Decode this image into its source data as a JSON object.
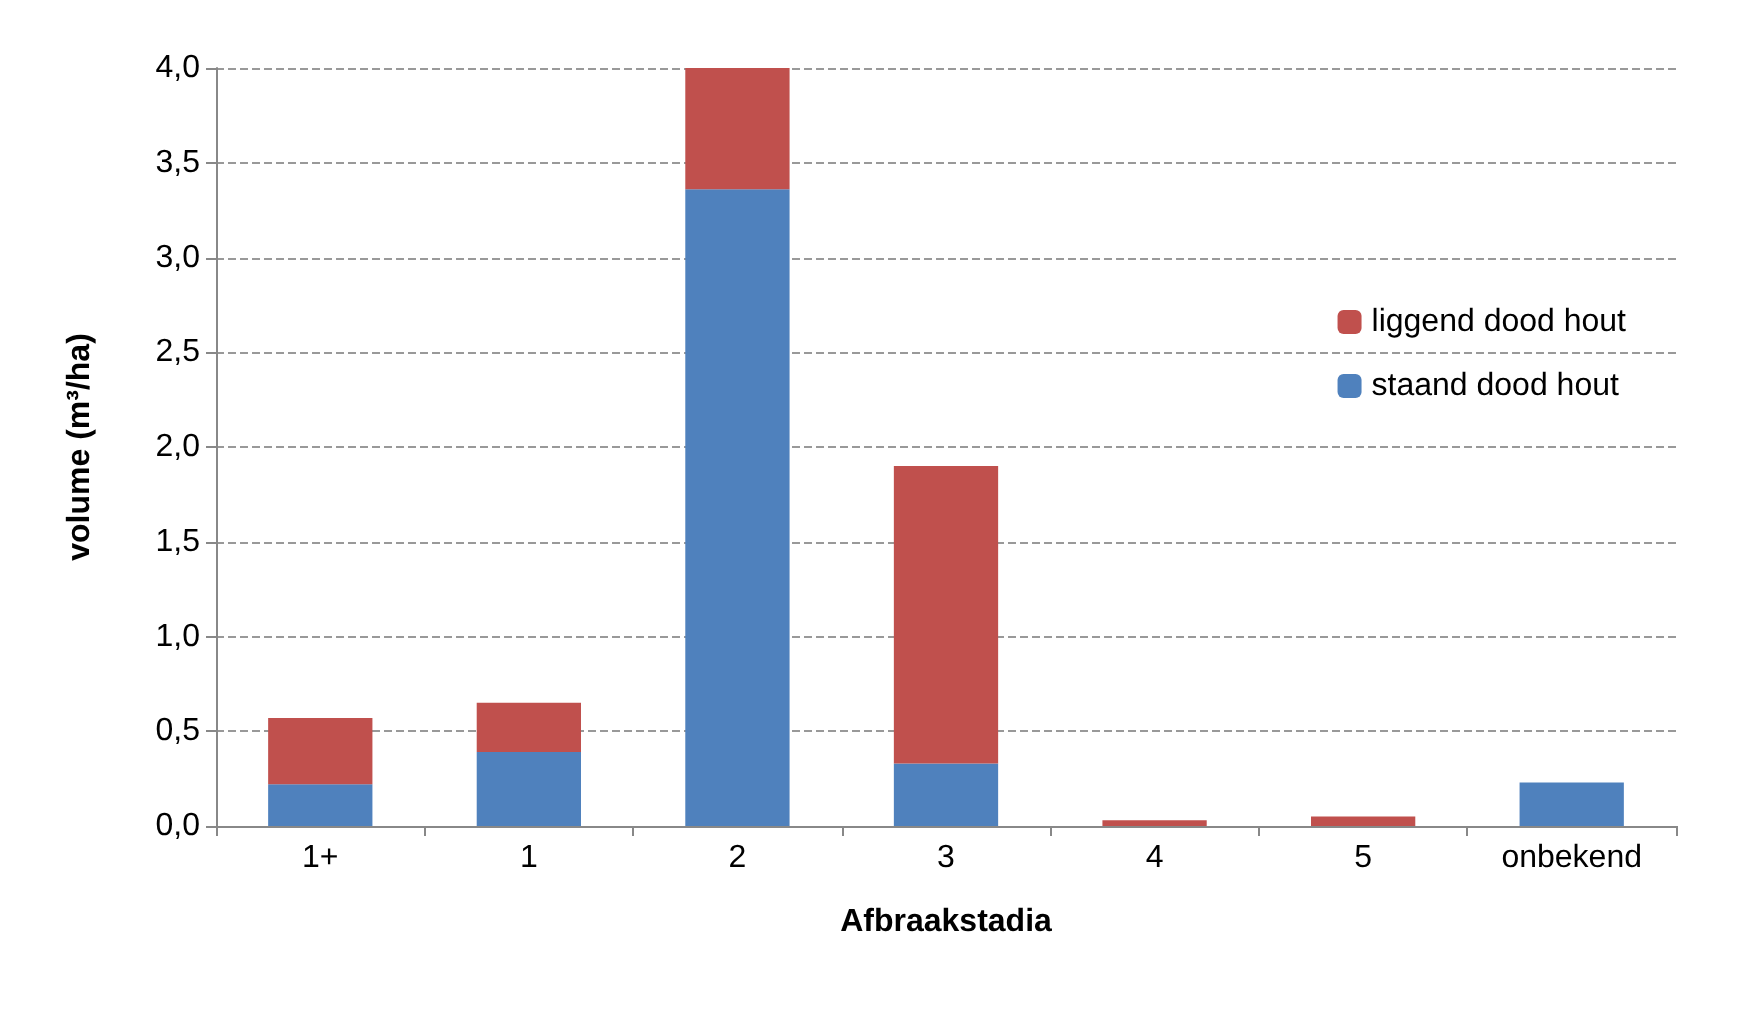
{
  "chart_data": {
    "type": "bar",
    "stacked": true,
    "xlabel": "Afbraakstadia",
    "ylabel": "volume (m³/ha)",
    "categories": [
      "1+",
      "1",
      "2",
      "3",
      "4",
      "5",
      "onbekend"
    ],
    "series": [
      {
        "name": "staand dood hout",
        "color": "#4f81bd",
        "values": [
          0.22,
          0.39,
          3.36,
          0.33,
          0,
          0,
          0.23
        ]
      },
      {
        "name": "liggend dood hout",
        "color": "#c0504d",
        "values": [
          0.35,
          0.26,
          0.64,
          1.57,
          0.03,
          0.05,
          0
        ]
      }
    ],
    "ylim": [
      0,
      4
    ],
    "yticks": [
      {
        "value": 0,
        "label": "0,0"
      },
      {
        "value": 0.5,
        "label": "0,5"
      },
      {
        "value": 1,
        "label": "1,0"
      },
      {
        "value": 1.5,
        "label": "1,5"
      },
      {
        "value": 2,
        "label": "2,0"
      },
      {
        "value": 2.5,
        "label": "2,5"
      },
      {
        "value": 3,
        "label": "3,0"
      },
      {
        "value": 3.5,
        "label": "3,5"
      },
      {
        "value": 4,
        "label": "4,0"
      }
    ],
    "grid": "y",
    "legend": "right"
  }
}
